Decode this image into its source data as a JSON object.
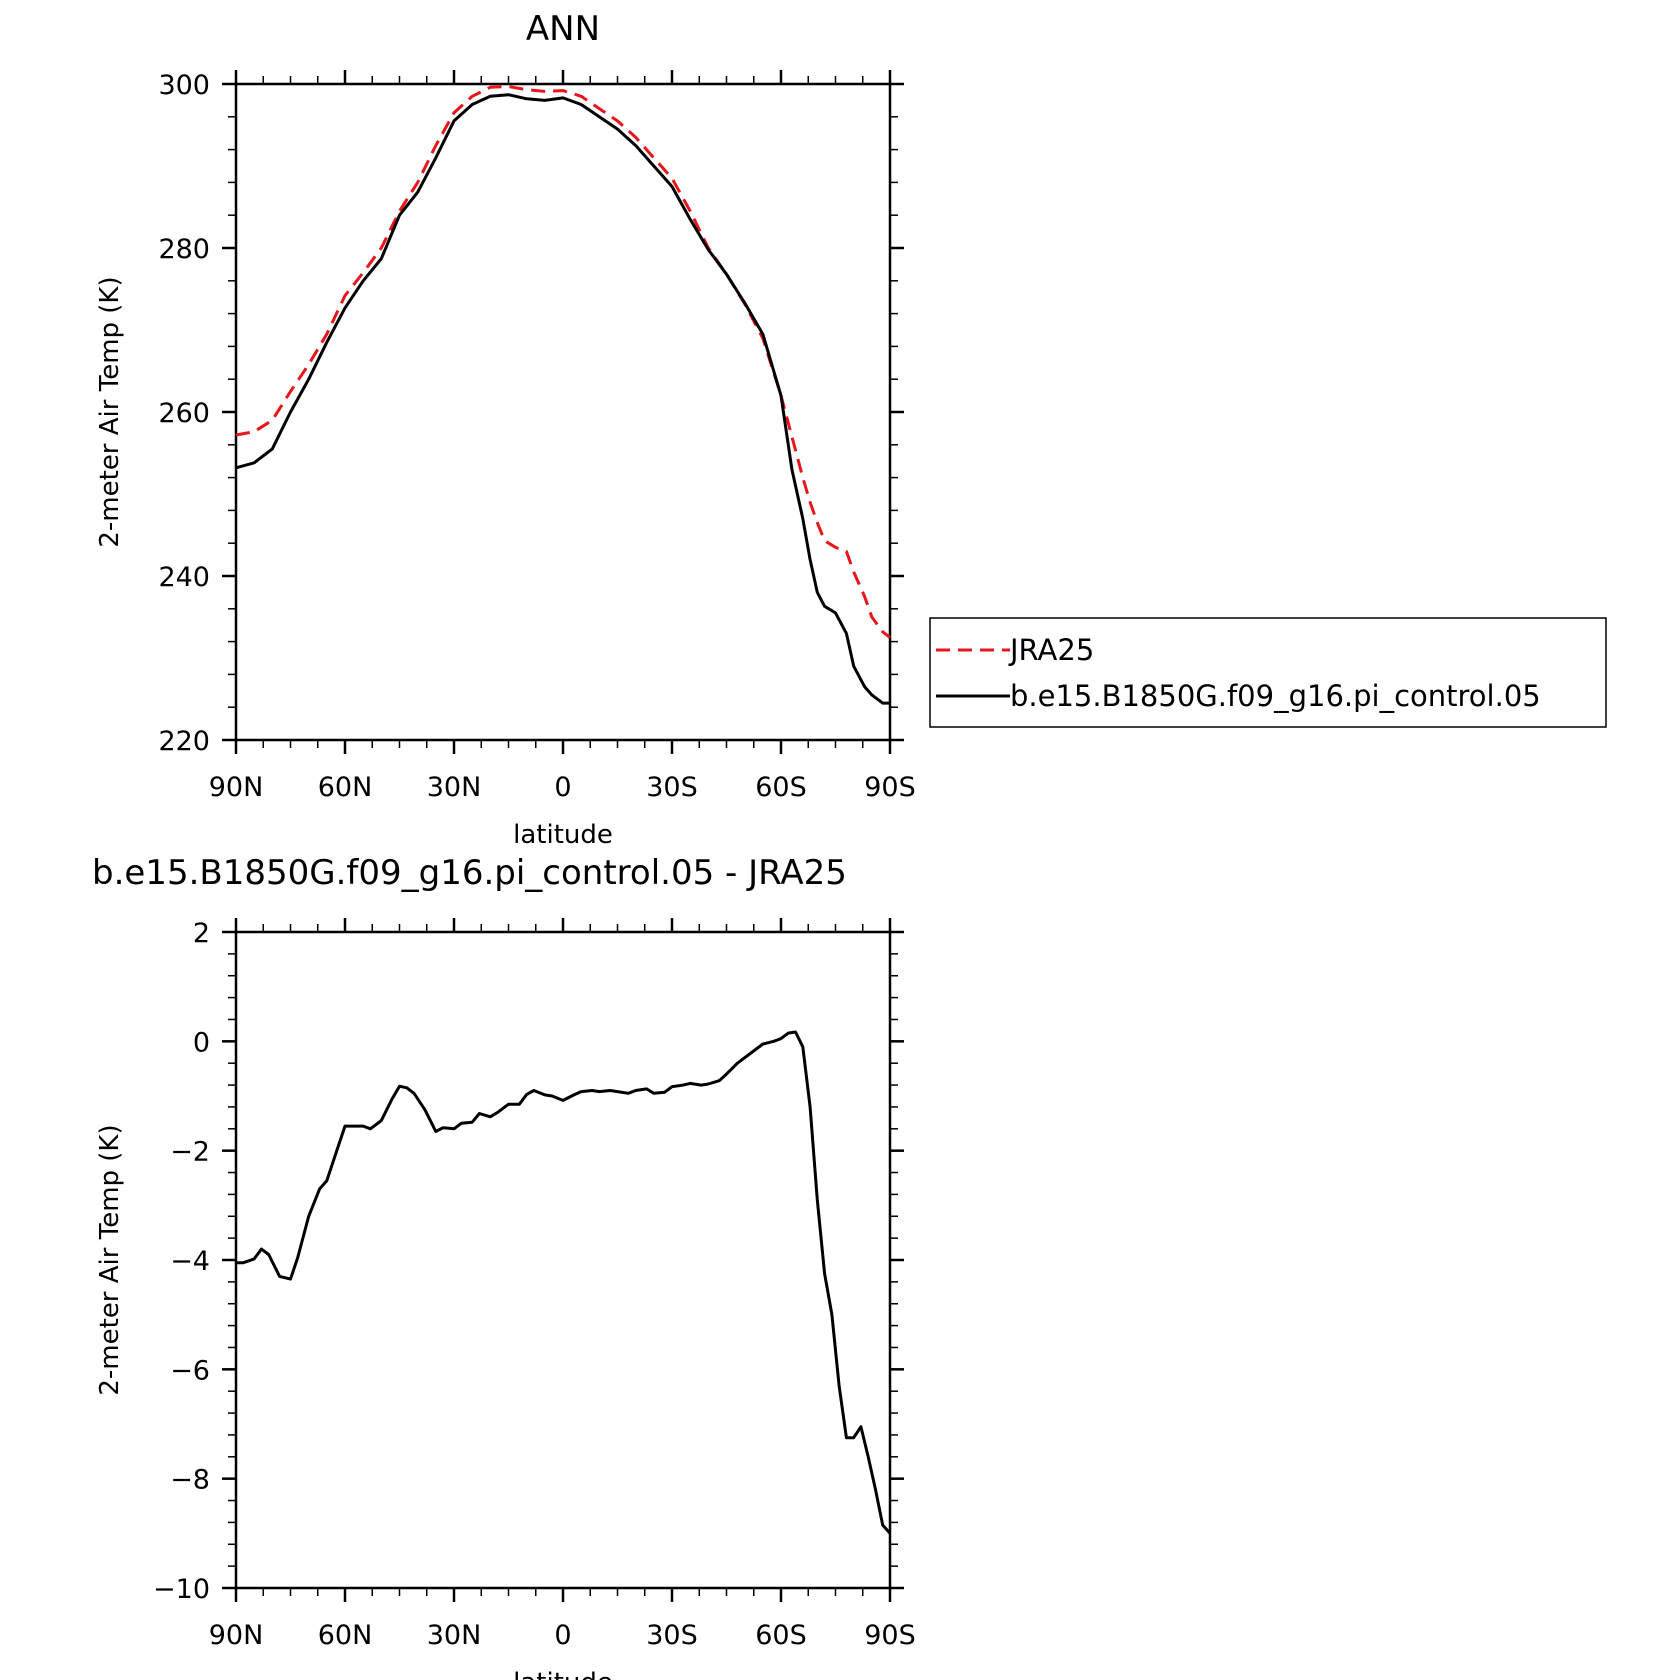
{
  "chart_data": [
    {
      "type": "line",
      "title": "ANN",
      "xlabel": "latitude",
      "ylabel": "2-meter Air Temp (K)",
      "xlim": [
        90,
        -90
      ],
      "ylim": [
        220,
        300
      ],
      "x_ticks": [
        90,
        60,
        30,
        0,
        -30,
        -60,
        -90
      ],
      "x_tick_labels": [
        "90N",
        "60N",
        "30N",
        "0",
        "30S",
        "60S",
        "90S"
      ],
      "y_ticks": [
        220,
        240,
        260,
        280,
        300
      ],
      "y_tick_labels": [
        "220",
        "240",
        "260",
        "280",
        "300"
      ],
      "legend_position": "right",
      "series": [
        {
          "name": "JRA25",
          "color": "#e8151b",
          "dash": "dashed",
          "x": [
            90,
            85,
            80,
            75,
            70,
            65,
            60,
            55,
            50,
            45,
            40,
            35,
            30,
            25,
            20,
            15,
            10,
            5,
            0,
            -5,
            -10,
            -15,
            -20,
            -25,
            -30,
            -35,
            -40,
            -45,
            -50,
            -55,
            -60,
            -63,
            -66,
            -68,
            -70,
            -72,
            -75,
            -78,
            -80,
            -83,
            -85,
            -88,
            -90
          ],
          "values": [
            257.2,
            257.6,
            259.0,
            262.5,
            265.8,
            269.5,
            274.2,
            277.0,
            280.0,
            284.5,
            288.0,
            292.5,
            296.5,
            298.5,
            299.6,
            299.7,
            299.3,
            299.1,
            299.2,
            298.5,
            297.0,
            295.5,
            293.5,
            291.0,
            288.5,
            284.5,
            280.0,
            276.8,
            273.2,
            269.0,
            262.0,
            257.0,
            252.0,
            249.0,
            246.5,
            244.3,
            243.5,
            243.0,
            240.5,
            237.5,
            235.0,
            233.2,
            232.5
          ]
        },
        {
          "name": "b.e15.B1850G.f09_g16.pi_control.05",
          "color": "#000000",
          "dash": "solid",
          "x": [
            90,
            85,
            80,
            75,
            70,
            65,
            60,
            55,
            50,
            45,
            40,
            35,
            30,
            25,
            20,
            15,
            10,
            5,
            0,
            -5,
            -10,
            -15,
            -20,
            -25,
            -30,
            -35,
            -40,
            -45,
            -50,
            -55,
            -60,
            -63,
            -66,
            -68,
            -70,
            -72,
            -75,
            -78,
            -80,
            -83,
            -85,
            -88,
            -90
          ],
          "values": [
            253.2,
            253.8,
            255.5,
            260.0,
            264.0,
            268.5,
            272.7,
            276.0,
            278.7,
            284.0,
            286.8,
            291.0,
            295.5,
            297.5,
            298.5,
            298.7,
            298.2,
            298.0,
            298.3,
            297.5,
            296.0,
            294.5,
            292.5,
            290.0,
            287.5,
            283.5,
            279.8,
            276.8,
            273.3,
            269.5,
            262.0,
            253.0,
            247.0,
            242.0,
            238.0,
            236.3,
            235.5,
            233.0,
            229.0,
            226.5,
            225.5,
            224.5,
            224.5
          ]
        }
      ]
    },
    {
      "type": "line",
      "title": "b.e15.B1850G.f09_g16.pi_control.05 - JRA25",
      "xlabel": "latitude",
      "ylabel": "2-meter Air Temp (K)",
      "xlim": [
        90,
        -90
      ],
      "ylim": [
        -10,
        2
      ],
      "x_ticks": [
        90,
        60,
        30,
        0,
        -30,
        -60,
        -90
      ],
      "x_tick_labels": [
        "90N",
        "60N",
        "30N",
        "0",
        "30S",
        "60S",
        "90S"
      ],
      "y_ticks": [
        -10,
        -8,
        -6,
        -4,
        -2,
        0,
        2
      ],
      "y_tick_labels": [
        "−10",
        "−8",
        "−6",
        "−4",
        "−2",
        "0",
        "2"
      ],
      "series": [
        {
          "color": "#000000",
          "dash": "solid",
          "x": [
            90,
            88,
            85,
            83,
            81,
            78,
            75,
            73,
            70,
            67,
            65,
            62,
            60,
            58,
            55,
            53,
            50,
            47,
            45,
            43,
            41,
            38,
            35,
            33,
            30,
            28,
            25,
            23,
            20,
            18,
            15,
            12,
            10,
            8,
            5,
            3,
            0,
            -3,
            -5,
            -8,
            -10,
            -13,
            -15,
            -18,
            -20,
            -23,
            -25,
            -28,
            -30,
            -33,
            -35,
            -38,
            -40,
            -43,
            -45,
            -48,
            -50,
            -53,
            -55,
            -58,
            -60,
            -62,
            -64,
            -66,
            -68,
            -70,
            -72,
            -74,
            -76,
            -78,
            -80,
            -82,
            -84,
            -86,
            -88,
            -90
          ],
          "values": [
            -4.05,
            -4.05,
            -3.98,
            -3.8,
            -3.9,
            -4.3,
            -4.35,
            -3.95,
            -3.2,
            -2.7,
            -2.55,
            -1.95,
            -1.55,
            -1.55,
            -1.55,
            -1.6,
            -1.45,
            -1.05,
            -0.82,
            -0.85,
            -0.95,
            -1.25,
            -1.65,
            -1.58,
            -1.6,
            -1.5,
            -1.48,
            -1.32,
            -1.38,
            -1.3,
            -1.15,
            -1.15,
            -0.97,
            -0.9,
            -0.98,
            -1.0,
            -1.08,
            -0.98,
            -0.92,
            -0.9,
            -0.92,
            -0.9,
            -0.92,
            -0.95,
            -0.9,
            -0.87,
            -0.95,
            -0.93,
            -0.83,
            -0.8,
            -0.77,
            -0.8,
            -0.78,
            -0.72,
            -0.6,
            -0.4,
            -0.3,
            -0.15,
            -0.05,
            0.0,
            0.05,
            0.15,
            0.17,
            -0.1,
            -1.2,
            -2.9,
            -4.25,
            -5.0,
            -6.3,
            -7.25,
            -7.25,
            -7.05,
            -7.6,
            -8.2,
            -8.85,
            -9.0
          ]
        }
      ]
    }
  ]
}
